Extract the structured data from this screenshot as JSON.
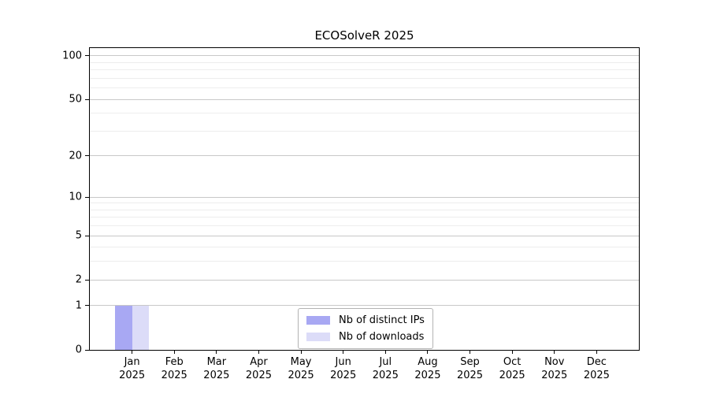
{
  "chart_data": {
    "type": "bar",
    "title": "ECOSolveR 2025",
    "categories": [
      "Jan",
      "Feb",
      "Mar",
      "Apr",
      "May",
      "Jun",
      "Jul",
      "Aug",
      "Sep",
      "Oct",
      "Nov",
      "Dec"
    ],
    "x_year": "2025",
    "series": [
      {
        "name": "Nb of distinct IPs",
        "color": "#a8a8f3",
        "values": [
          1,
          0,
          0,
          0,
          0,
          0,
          0,
          0,
          0,
          0,
          0,
          0
        ]
      },
      {
        "name": "Nb of downloads",
        "color": "#dcdcf8",
        "values": [
          1,
          0,
          0,
          0,
          0,
          0,
          0,
          0,
          0,
          0,
          0,
          0
        ]
      }
    ],
    "yscale": "log1p",
    "y_ticks": [
      0,
      1,
      2,
      5,
      10,
      20,
      50,
      100
    ],
    "y_minor_ticks": [
      3,
      4,
      6,
      7,
      8,
      9,
      30,
      40,
      60,
      70,
      80,
      90
    ],
    "ylim": [
      0,
      113
    ],
    "grid": true,
    "legend_position": "lower center",
    "bar_width_fraction": 0.4,
    "colors": {
      "grid_major": "#c8c8c8",
      "grid_minor": "#ededed",
      "spine": "#000000",
      "text": "#000000",
      "legend_border": "#b3b3b3"
    }
  }
}
